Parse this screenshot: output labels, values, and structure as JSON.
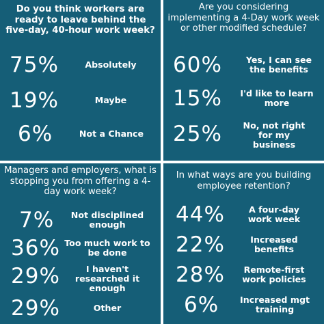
{
  "colors": {
    "panel": "#155e77",
    "gutter": "#ffffff",
    "text": "#ffffff"
  },
  "quadrants": [
    {
      "question": "Do you think workers are ready to leave behind the five-day, 40-hour work week?",
      "answers": [
        {
          "pct": "75%",
          "label": "Absolutely"
        },
        {
          "pct": "19%",
          "label": "Maybe"
        },
        {
          "pct": "6%",
          "label": "Not a Chance"
        }
      ]
    },
    {
      "question": "Are you considering implementing a 4-Day work week or other modified schedule?",
      "answers": [
        {
          "pct": "60%",
          "label": "Yes, I can see the benefits"
        },
        {
          "pct": "15%",
          "label": "I'd like to learn more"
        },
        {
          "pct": "25%",
          "label": "No, not right for my business"
        }
      ]
    },
    {
      "question": "Managers and employers, what is stopping you from offering a 4-day work week?",
      "answers": [
        {
          "pct": "7%",
          "label": "Not disciplined enough"
        },
        {
          "pct": "36%",
          "label": "Too much work to be done"
        },
        {
          "pct": "29%",
          "label": "I haven't researched it enough"
        },
        {
          "pct": "29%",
          "label": "Other"
        }
      ]
    },
    {
      "question": "In what ways are you building employee retention?",
      "answers": [
        {
          "pct": "44%",
          "label": "A four-day work week"
        },
        {
          "pct": "22%",
          "label": "Increased benefits"
        },
        {
          "pct": "28%",
          "label": "Remote-first work policies"
        },
        {
          "pct": "6%",
          "label": "Increased mgt training"
        }
      ]
    }
  ]
}
